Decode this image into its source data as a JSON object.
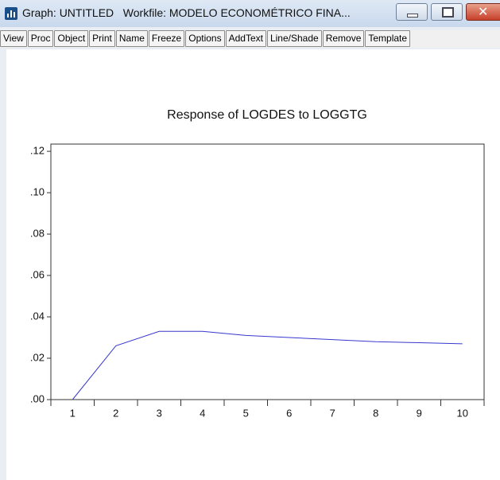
{
  "window": {
    "title": "Graph: UNTITLED   Workfile: MODELO ECONOMÉTRICO FINA...",
    "toolbar": [
      "View",
      "Proc",
      "Object",
      "Print",
      "Name",
      "Freeze",
      "Options",
      "AddText",
      "Line/Shade",
      "Remove",
      "Template"
    ]
  },
  "chart_data": {
    "type": "line",
    "title": "Response of LOGDES to LOGGTG",
    "categories": [
      "1",
      "2",
      "3",
      "4",
      "5",
      "6",
      "7",
      "8",
      "9",
      "10"
    ],
    "series": [
      {
        "name": "LOGDES",
        "color": "#3838d0",
        "values": [
          0.0,
          0.026,
          0.033,
          0.033,
          0.031,
          0.03,
          0.029,
          0.028,
          0.0275,
          0.027
        ]
      }
    ],
    "ylim": [
      0,
      0.1235
    ],
    "yticks": [
      {
        "value": 0,
        "label": ".00"
      },
      {
        "value": 0.02,
        "label": ".02"
      },
      {
        "value": 0.04,
        "label": ".04"
      },
      {
        "value": 0.06,
        "label": ".06"
      },
      {
        "value": 0.08,
        "label": ".08"
      },
      {
        "value": 0.1,
        "label": ".10"
      },
      {
        "value": 0.12,
        "label": ".12"
      }
    ],
    "grid": false
  }
}
